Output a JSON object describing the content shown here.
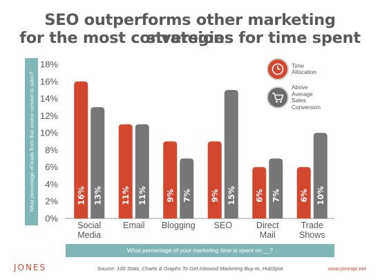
{
  "title": {
    "line1": "SEO outperforms other marketing strategies",
    "line2": "for the most conversions for time spent"
  },
  "chart_data": {
    "type": "bar",
    "title": "SEO outperforms other marketing strategies for the most conversions for time spent",
    "ylabel": "What percentage of leads from that source convert to sales?",
    "xlabel": "What percentage of your marketing time is spent on __?",
    "ylim": [
      0,
      18
    ],
    "yticks": [
      0,
      2,
      4,
      6,
      8,
      10,
      12,
      14,
      16,
      18
    ],
    "ytick_labels": [
      "0%",
      "2%",
      "4%",
      "6%",
      "8%",
      "10%",
      "12%",
      "14%",
      "16%",
      "18%"
    ],
    "categories": [
      [
        "Social",
        "Media"
      ],
      [
        "Email"
      ],
      [
        "Blogging"
      ],
      [
        "SEO"
      ],
      [
        "Direct",
        "Mail"
      ],
      [
        "Trade",
        "Shows"
      ]
    ],
    "series": [
      {
        "name": "Time Allocation",
        "color": "#d4472f",
        "values": [
          16,
          11,
          9,
          9,
          6,
          6
        ],
        "labels": [
          "16%",
          "11%",
          "9%",
          "9%",
          "6%",
          "6%"
        ]
      },
      {
        "name": "Above Average Sales Conversion",
        "color": "#777777",
        "values": [
          13,
          11,
          7,
          15,
          7,
          10
        ],
        "labels": [
          "13%",
          "11%",
          "7%",
          "15%",
          "7%",
          "10%"
        ]
      }
    ],
    "grid": false,
    "legend_position": "top-right"
  },
  "legend": {
    "time": {
      "line1": "Time",
      "line2": "Allocation",
      "icon": "clock-icon",
      "color": "#d4472f"
    },
    "sales": {
      "line1": "Above",
      "line2": "Average",
      "line3": "Sales",
      "line4": "Conversion",
      "icon": "cart-icon",
      "color": "#6b6b6b"
    }
  },
  "footer": {
    "logo": "JONES",
    "source": "Source: 100 Stats, Charts & Graphs To Get Inbound Marketing Buy-In, HubSpot",
    "url": "www.jonespr.net"
  }
}
